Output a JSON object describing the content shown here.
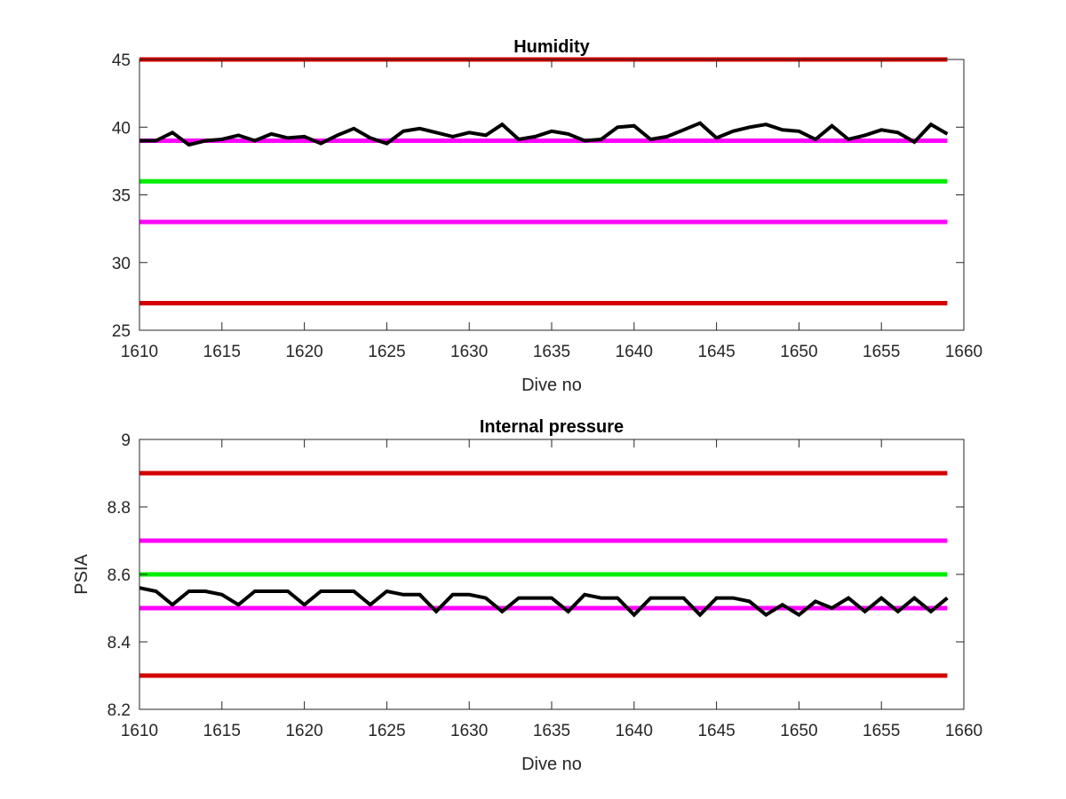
{
  "chart_data": [
    {
      "type": "line",
      "title": "Humidity",
      "xlabel": "Dive no",
      "ylabel": "",
      "xlim": [
        1610,
        1660
      ],
      "ylim": [
        25,
        45
      ],
      "xticks": [
        "1610",
        "1615",
        "1620",
        "1625",
        "1630",
        "1635",
        "1640",
        "1645",
        "1650",
        "1655",
        "1660"
      ],
      "yticks": [
        "25",
        "30",
        "35",
        "40",
        "45"
      ],
      "grid": false,
      "reference_lines": [
        {
          "y": 45,
          "color": "#d40000"
        },
        {
          "y": 39,
          "color": "#ff00ff"
        },
        {
          "y": 36,
          "color": "#00ee00"
        },
        {
          "y": 33,
          "color": "#ff00ff"
        },
        {
          "y": 27,
          "color": "#d40000"
        }
      ],
      "series": [
        {
          "color": "#000000",
          "x": [
            1610,
            1611,
            1612,
            1613,
            1614,
            1615,
            1616,
            1617,
            1618,
            1619,
            1620,
            1621,
            1622,
            1623,
            1624,
            1625,
            1626,
            1627,
            1628,
            1629,
            1630,
            1631,
            1632,
            1633,
            1634,
            1635,
            1636,
            1637,
            1638,
            1639,
            1640,
            1641,
            1642,
            1643,
            1644,
            1645,
            1646,
            1647,
            1648,
            1649,
            1650,
            1651,
            1652,
            1653,
            1654,
            1655,
            1656,
            1657,
            1658,
            1659
          ],
          "y": [
            39.0,
            39.0,
            39.6,
            38.7,
            39.0,
            39.1,
            39.4,
            39.0,
            39.5,
            39.2,
            39.3,
            38.8,
            39.4,
            39.9,
            39.2,
            38.8,
            39.7,
            39.9,
            39.6,
            39.3,
            39.6,
            39.4,
            40.2,
            39.1,
            39.3,
            39.7,
            39.5,
            39.0,
            39.1,
            40.0,
            40.1,
            39.1,
            39.3,
            39.8,
            40.3,
            39.2,
            39.7,
            40.0,
            40.2,
            39.8,
            39.7,
            39.1,
            40.1,
            39.1,
            39.4,
            39.8,
            39.6,
            38.9,
            40.2,
            39.5
          ]
        }
      ]
    },
    {
      "type": "line",
      "title": "Internal pressure",
      "xlabel": "Dive no",
      "ylabel": "PSIA",
      "xlim": [
        1610,
        1660
      ],
      "ylim": [
        8.2,
        9.0
      ],
      "xticks": [
        "1610",
        "1615",
        "1620",
        "1625",
        "1630",
        "1635",
        "1640",
        "1645",
        "1650",
        "1655",
        "1660"
      ],
      "yticks": [
        "8.2",
        "8.4",
        "8.6",
        "8.8",
        "9"
      ],
      "grid": false,
      "reference_lines": [
        {
          "y": 8.9,
          "color": "#d40000"
        },
        {
          "y": 8.7,
          "color": "#ff00ff"
        },
        {
          "y": 8.6,
          "color": "#00ee00"
        },
        {
          "y": 8.5,
          "color": "#ff00ff"
        },
        {
          "y": 8.3,
          "color": "#d40000"
        }
      ],
      "series": [
        {
          "color": "#000000",
          "x": [
            1610,
            1611,
            1612,
            1613,
            1614,
            1615,
            1616,
            1617,
            1618,
            1619,
            1620,
            1621,
            1622,
            1623,
            1624,
            1625,
            1626,
            1627,
            1628,
            1629,
            1630,
            1631,
            1632,
            1633,
            1634,
            1635,
            1636,
            1637,
            1638,
            1639,
            1640,
            1641,
            1642,
            1643,
            1644,
            1645,
            1646,
            1647,
            1648,
            1649,
            1650,
            1651,
            1652,
            1653,
            1654,
            1655,
            1656,
            1657,
            1658,
            1659
          ],
          "y": [
            8.56,
            8.55,
            8.51,
            8.55,
            8.55,
            8.54,
            8.51,
            8.55,
            8.55,
            8.55,
            8.51,
            8.55,
            8.55,
            8.55,
            8.51,
            8.55,
            8.54,
            8.54,
            8.49,
            8.54,
            8.54,
            8.53,
            8.49,
            8.53,
            8.53,
            8.53,
            8.49,
            8.54,
            8.53,
            8.53,
            8.48,
            8.53,
            8.53,
            8.53,
            8.48,
            8.53,
            8.53,
            8.52,
            8.48,
            8.51,
            8.48,
            8.52,
            8.5,
            8.53,
            8.49,
            8.53,
            8.49,
            8.53,
            8.49,
            8.53
          ]
        }
      ]
    }
  ]
}
